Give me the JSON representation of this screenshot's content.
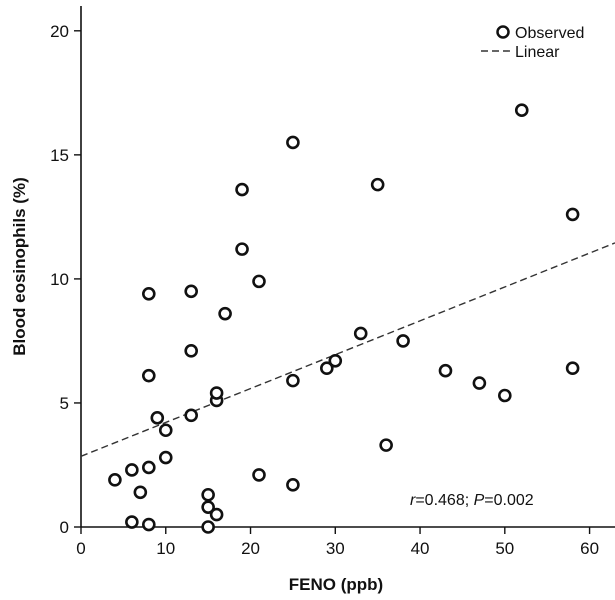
{
  "chart_data": {
    "type": "scatter",
    "xlabel": "FENO (ppb)",
    "ylabel": "Blood eosinophils (%)",
    "xlim": [
      0,
      63
    ],
    "ylim": [
      0,
      21
    ],
    "x_ticks": [
      "0",
      "10",
      "20",
      "30",
      "40",
      "50",
      "60"
    ],
    "y_ticks": [
      "0",
      "5",
      "10",
      "15",
      "20"
    ],
    "legend_position": "top-right",
    "grid": false,
    "series": [
      {
        "name": "Observed",
        "marker": "open-circle",
        "points": [
          [
            4,
            1.9
          ],
          [
            6,
            0.2
          ],
          [
            6,
            2.3
          ],
          [
            7,
            1.4
          ],
          [
            8,
            0.1
          ],
          [
            8,
            2.4
          ],
          [
            8,
            6.1
          ],
          [
            8,
            9.4
          ],
          [
            9,
            4.4
          ],
          [
            10,
            2.8
          ],
          [
            10,
            3.9
          ],
          [
            13,
            4.5
          ],
          [
            13,
            7.1
          ],
          [
            13,
            9.5
          ],
          [
            15,
            0.0
          ],
          [
            15,
            0.8
          ],
          [
            15,
            1.3
          ],
          [
            16,
            0.5
          ],
          [
            16,
            5.1
          ],
          [
            16,
            5.4
          ],
          [
            17,
            8.6
          ],
          [
            19,
            11.2
          ],
          [
            19,
            13.6
          ],
          [
            21,
            2.1
          ],
          [
            21,
            9.9
          ],
          [
            25,
            1.7
          ],
          [
            25,
            5.9
          ],
          [
            25,
            15.5
          ],
          [
            29,
            6.4
          ],
          [
            30,
            6.7
          ],
          [
            33,
            7.8
          ],
          [
            35,
            13.8
          ],
          [
            36,
            3.3
          ],
          [
            38,
            7.5
          ],
          [
            43,
            6.3
          ],
          [
            47,
            5.8
          ],
          [
            50,
            5.3
          ],
          [
            52,
            16.8
          ],
          [
            58,
            6.4
          ],
          [
            58,
            12.6
          ]
        ]
      },
      {
        "name": "Linear",
        "style": "dashed-line",
        "line": {
          "x0": 0,
          "y0": 2.85,
          "x1": 63,
          "y1": 11.45
        }
      }
    ],
    "annotation": {
      "parts": [
        {
          "text": "r",
          "italic": true
        },
        {
          "text": "=0.468; ",
          "italic": false
        },
        {
          "text": "P",
          "italic": true
        },
        {
          "text": "=0.002",
          "italic": false
        }
      ]
    }
  },
  "colors": {
    "marker_stroke": "#111111",
    "axis": "#111111",
    "regression_line": "#333333"
  }
}
